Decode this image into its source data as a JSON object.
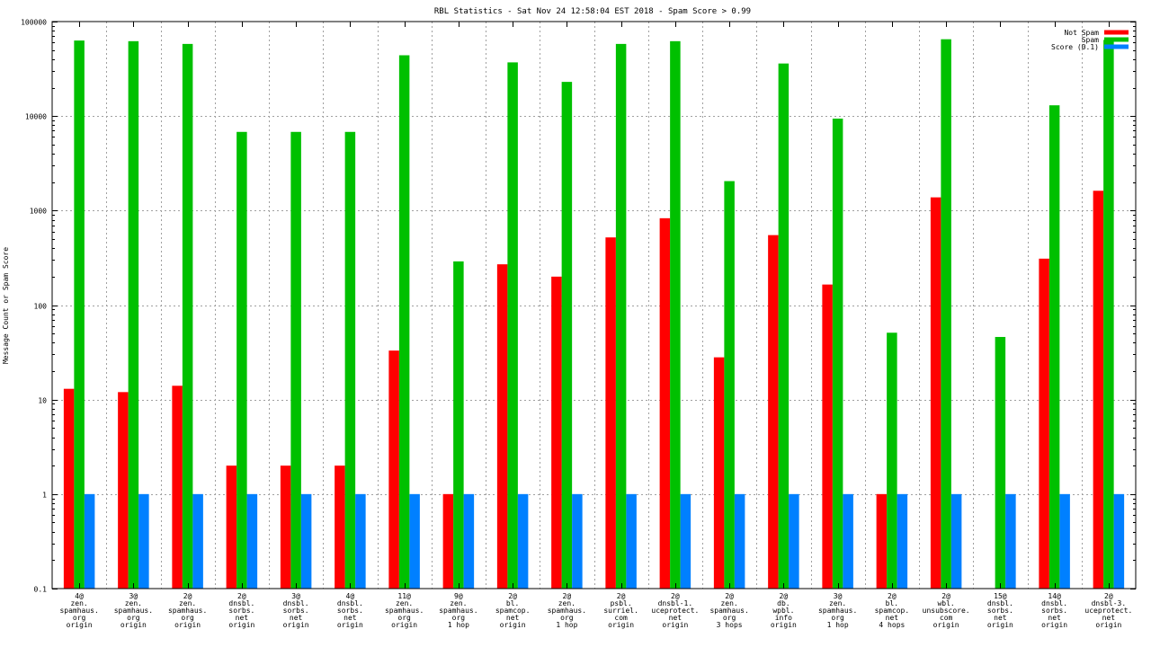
{
  "chart_data": {
    "type": "bar",
    "title": "RBL Statistics - Sat Nov 24 12:58:04 EST 2018 - Spam Score > 0.99",
    "xlabel": "",
    "ylabel": "Message Count or Spam Score",
    "yscale": "log",
    "ylim": [
      0.1,
      100000
    ],
    "yticks": [
      "0.1",
      "1",
      "10",
      "100",
      "1000",
      "10000",
      "100000"
    ],
    "grid": true,
    "legend_position": "top-right",
    "categories": [
      [
        "4@",
        "zen.",
        "spamhaus.",
        "org",
        "origin"
      ],
      [
        "3@",
        "zen.",
        "spamhaus.",
        "org",
        "origin"
      ],
      [
        "2@",
        "zen.",
        "spamhaus.",
        "org",
        "origin"
      ],
      [
        "2@",
        "dnsbl.",
        "sorbs.",
        "net",
        "origin"
      ],
      [
        "3@",
        "dnsbl.",
        "sorbs.",
        "net",
        "origin"
      ],
      [
        "4@",
        "dnsbl.",
        "sorbs.",
        "net",
        "origin"
      ],
      [
        "11@",
        "zen.",
        "spamhaus.",
        "org",
        "origin"
      ],
      [
        "9@",
        "zen.",
        "spamhaus.",
        "org",
        "1 hop"
      ],
      [
        "2@",
        "bl.",
        "spamcop.",
        "net",
        "origin"
      ],
      [
        "2@",
        "zen.",
        "spamhaus.",
        "org",
        "1 hop"
      ],
      [
        "2@",
        "psbl.",
        "surriel.",
        "com",
        "origin"
      ],
      [
        "2@",
        "dnsbl-1.",
        "uceprotect.",
        "net",
        "origin"
      ],
      [
        "2@",
        "zen.",
        "spamhaus.",
        "org",
        "3 hops"
      ],
      [
        "2@",
        "db.",
        "wpbl.",
        "info",
        "origin"
      ],
      [
        "3@",
        "zen.",
        "spamhaus.",
        "org",
        "1 hop"
      ],
      [
        "2@",
        "bl.",
        "spamcop.",
        "net",
        "4 hops"
      ],
      [
        "2@",
        "wbl.",
        "unsubscore.",
        "com",
        "origin"
      ],
      [
        "15@",
        "dnsbl.",
        "sorbs.",
        "net",
        "origin"
      ],
      [
        "14@",
        "dnsbl.",
        "sorbs.",
        "net",
        "origin"
      ],
      [
        "2@",
        "dnsbl-3.",
        "uceprotect.",
        "net",
        "origin"
      ]
    ],
    "series": [
      {
        "name": "Not Spam",
        "color": "#ff0000",
        "values": [
          13,
          12,
          14,
          2,
          2,
          2,
          33,
          1,
          270,
          200,
          520,
          830,
          28,
          550,
          165,
          1,
          1380,
          null,
          310,
          1620
        ]
      },
      {
        "name": "Spam",
        "color": "#00c000",
        "values": [
          63000,
          62000,
          58000,
          6800,
          6800,
          6800,
          44000,
          290,
          37000,
          23000,
          58000,
          62000,
          2050,
          36000,
          9400,
          51,
          65000,
          46,
          13000,
          64000
        ]
      },
      {
        "name": "Score (0.1)",
        "color": "#0080ff",
        "values": [
          1,
          1,
          1,
          1,
          1,
          1,
          1,
          1,
          1,
          1,
          1,
          1,
          1,
          1,
          1,
          1,
          1,
          1,
          1,
          1
        ]
      }
    ]
  }
}
